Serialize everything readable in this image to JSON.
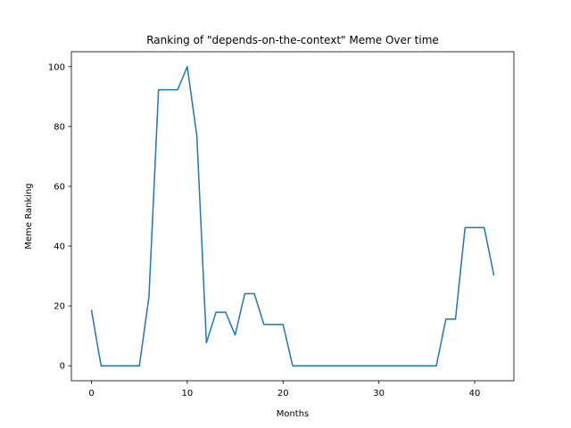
{
  "chart_data": {
    "type": "line",
    "title": "Ranking of \"depends-on-the-context\" Meme Over time",
    "xlabel": "Months",
    "ylabel": "Meme Ranking",
    "xlim": [
      -2.1,
      44.1
    ],
    "ylim": [
      -5,
      105
    ],
    "xticks": [
      0,
      10,
      20,
      30,
      40
    ],
    "yticks": [
      0,
      20,
      40,
      60,
      80,
      100
    ],
    "grid": false,
    "legend": "none",
    "line_color": "#1f77b4",
    "series": [
      {
        "x": [
          0,
          1,
          2,
          3,
          4,
          5,
          6,
          7,
          8,
          9,
          10,
          11,
          12,
          13,
          14,
          15,
          16,
          17,
          18,
          19,
          20,
          21,
          22,
          23,
          24,
          25,
          26,
          27,
          28,
          29,
          30,
          31,
          32,
          33,
          34,
          35,
          36,
          37,
          38,
          39,
          40,
          41,
          42
        ],
        "values": [
          18.5,
          0,
          0,
          0,
          0,
          0,
          23.1,
          92.3,
          92.3,
          92.3,
          100,
          76.9,
          7.7,
          17.9,
          17.9,
          10.3,
          24.1,
          24.1,
          13.8,
          13.8,
          13.8,
          0,
          0,
          0,
          0,
          0,
          0,
          0,
          0,
          0,
          0,
          0,
          0,
          0,
          0,
          0,
          0,
          15.6,
          15.6,
          46.2,
          46.2,
          46.2,
          30.4
        ]
      }
    ]
  }
}
